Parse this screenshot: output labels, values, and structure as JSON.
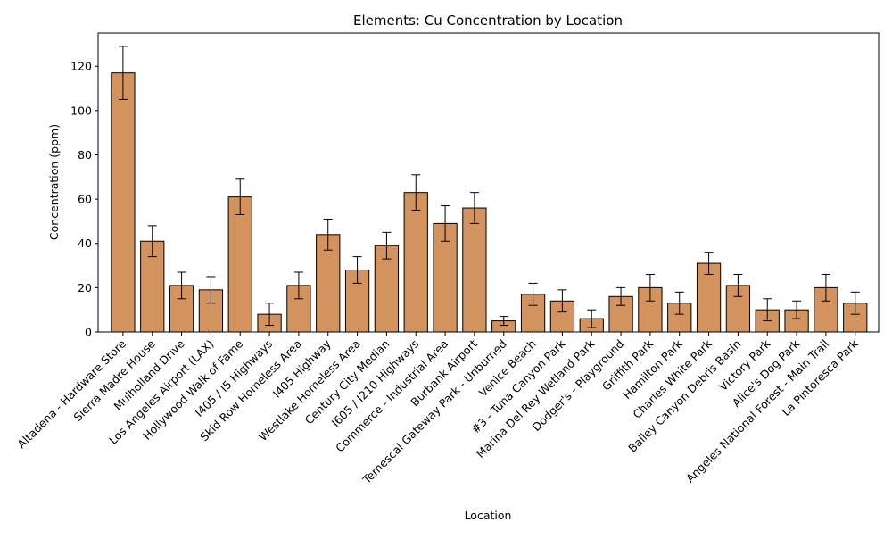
{
  "chart_data": {
    "type": "bar",
    "title": "Elements: Cu Concentration by Location",
    "xlabel": "Location",
    "ylabel": "Concentration (ppm)",
    "ylim": [
      0,
      135
    ],
    "yticks": [
      0,
      20,
      40,
      60,
      80,
      100,
      120
    ],
    "grid": false,
    "bar_color": "#d2935e",
    "edge_color": "#000000",
    "categories": [
      "Altadena - Hardware Store",
      "Sierra Madre House",
      "Mulholland Drive",
      "Los Angeles Airport (LAX)",
      "Hollywood Walk of Fame",
      "I405 / I5 Highways",
      "Skid Row Homeless Area",
      "I405 Highway",
      "Westlake Homeless Area",
      "Century City Median",
      "I605 / I210 Highways",
      "Commerce - Industrial Area",
      "Burbank Airport",
      "Temescal Gateway Park - Unburned",
      "Venice Beach",
      "#3 - Tuna Canyon Park",
      "Marina Del Rey Wetland Park",
      "Dodger's - Playground",
      "Griffith Park",
      "Hamilton Park",
      "Charles White Park",
      "Bailey Canyon Debris Basin",
      "Victory Park",
      "Alice's Dog Park",
      "Angeles National Forest - Main Trail",
      "La Pintoresca Park"
    ],
    "values": [
      117,
      41,
      21,
      19,
      61,
      8,
      21,
      44,
      28,
      39,
      63,
      49,
      56,
      5,
      17,
      14,
      6,
      16,
      20,
      13,
      31,
      21,
      10,
      10,
      20,
      13
    ],
    "errors": [
      12,
      7,
      6,
      6,
      8,
      5,
      6,
      7,
      6,
      6,
      8,
      8,
      7,
      2,
      5,
      5,
      4,
      4,
      6,
      5,
      5,
      5,
      5,
      4,
      6,
      5
    ]
  }
}
